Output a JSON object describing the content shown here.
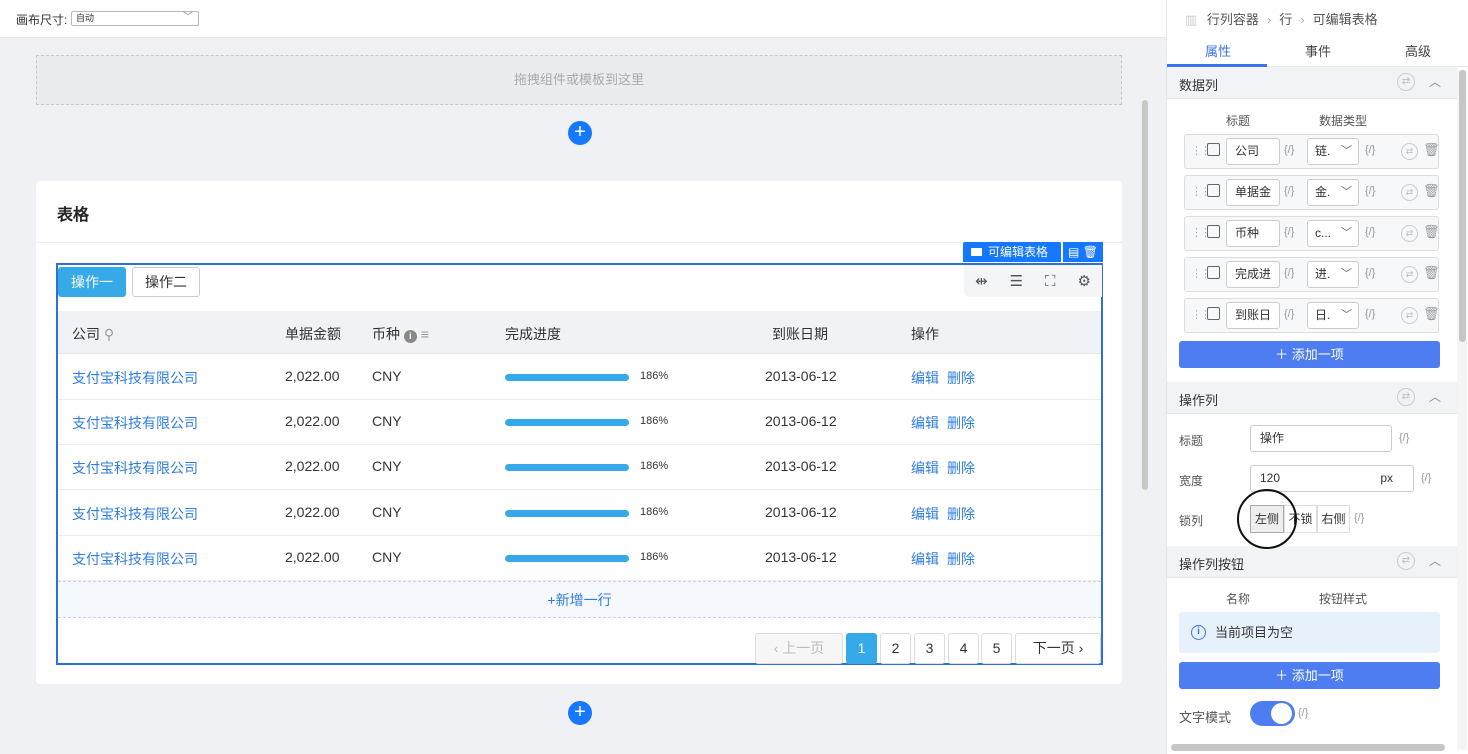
{
  "topbar": {
    "canvas_size_label": "画布尺寸:",
    "canvas_size_value": "自动"
  },
  "canvas": {
    "drop_hint": "拖拽组件或模板到这里",
    "add_icon": "plus-icon"
  },
  "card": {
    "title": "表格",
    "component_tag": "可编辑表格"
  },
  "table": {
    "tabs": [
      "操作一",
      "操作二"
    ],
    "columns": [
      "公司",
      "单据金额",
      "币种",
      "完成进度",
      "到账日期",
      "操作"
    ],
    "rows": [
      {
        "company": "支付宝科技有限公司",
        "amount": "2,022.00",
        "currency": "CNY",
        "progress": 186,
        "progress_label": "186%",
        "date": "2013-06-12"
      },
      {
        "company": "支付宝科技有限公司",
        "amount": "2,022.00",
        "currency": "CNY",
        "progress": 186,
        "progress_label": "186%",
        "date": "2013-06-12"
      },
      {
        "company": "支付宝科技有限公司",
        "amount": "2,022.00",
        "currency": "CNY",
        "progress": 186,
        "progress_label": "186%",
        "date": "2013-06-12"
      },
      {
        "company": "支付宝科技有限公司",
        "amount": "2,022.00",
        "currency": "CNY",
        "progress": 186,
        "progress_label": "186%",
        "date": "2013-06-12"
      },
      {
        "company": "支付宝科技有限公司",
        "amount": "2,022.00",
        "currency": "CNY",
        "progress": 186,
        "progress_label": "186%",
        "date": "2013-06-12"
      }
    ],
    "actions": [
      "编辑",
      "删除"
    ],
    "add_row": "+新增一行",
    "pagination": {
      "prev": "上一页",
      "next": "下一页",
      "pages": [
        "1",
        "2",
        "3",
        "4",
        "5"
      ],
      "current": "1"
    },
    "accent": "#36aae8"
  },
  "panel": {
    "breadcrumb": [
      "行列容器",
      "行",
      "可编辑表格"
    ],
    "tabs": [
      "属性",
      "事件",
      "高级"
    ],
    "active_tab": "属性",
    "data_columns": {
      "title": "数据列",
      "headers": [
        "标题",
        "数据类型"
      ],
      "items": [
        {
          "title": "公司",
          "type": "链."
        },
        {
          "title": "单据金",
          "type": "金."
        },
        {
          "title": "币种",
          "type": "c..."
        },
        {
          "title": "完成进",
          "type": "进."
        },
        {
          "title": "到账日",
          "type": "日."
        }
      ],
      "add_label": "添加一项"
    },
    "action_column": {
      "title": "操作列",
      "title_label": "标题",
      "title_value": "操作",
      "width_label": "宽度",
      "width_value": "120",
      "width_unit": "px",
      "lock_label": "锁列",
      "lock_options": [
        "左侧",
        "不锁",
        "右侧"
      ],
      "lock_selected": "左侧"
    },
    "action_buttons": {
      "title": "操作列按钮",
      "headers": [
        "名称",
        "按钮样式"
      ],
      "empty": "当前项目为空",
      "add_label": "添加一项",
      "text_mode_label": "文字模式",
      "text_mode_on": true
    },
    "var_icon": "{/}",
    "accent": "#4d7df0"
  }
}
